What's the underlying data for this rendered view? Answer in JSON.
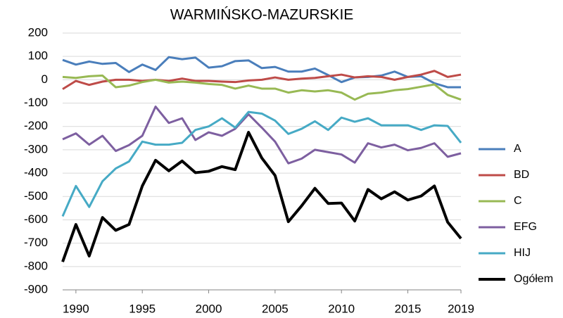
{
  "chart_data": {
    "type": "line",
    "title": "WARMIŃSKO-MAZURSKIE",
    "x": [
      1989,
      1990,
      1991,
      1992,
      1993,
      1994,
      1995,
      1996,
      1997,
      1998,
      1999,
      2000,
      2001,
      2002,
      2003,
      2004,
      2005,
      2006,
      2007,
      2008,
      2009,
      2010,
      2011,
      2012,
      2013,
      2014,
      2015,
      2016,
      2017,
      2018,
      2019
    ],
    "xlim": [
      1989,
      2019
    ],
    "xticks": [
      1990,
      1995,
      2000,
      2005,
      2010,
      2015,
      2019
    ],
    "ylim": [
      -900,
      200
    ],
    "yticks": [
      -900,
      -800,
      -700,
      -600,
      -500,
      -400,
      -300,
      -200,
      -100,
      0,
      100,
      200
    ],
    "grid": true,
    "legend": "right",
    "series": [
      {
        "name": "A",
        "color": "#4a7ebb",
        "line_width": 3,
        "values": [
          85,
          65,
          78,
          68,
          72,
          33,
          65,
          42,
          97,
          88,
          95,
          52,
          58,
          80,
          83,
          50,
          55,
          35,
          35,
          48,
          20,
          -10,
          10,
          12,
          18,
          35,
          12,
          15,
          -15,
          -32,
          -32
        ]
      },
      {
        "name": "BD",
        "color": "#be4b48",
        "line_width": 3,
        "values": [
          -40,
          -5,
          -22,
          -8,
          0,
          0,
          -5,
          0,
          -5,
          5,
          -5,
          -5,
          -8,
          -10,
          -3,
          0,
          10,
          0,
          5,
          8,
          15,
          22,
          10,
          15,
          12,
          0,
          12,
          22,
          38,
          12,
          22
        ]
      },
      {
        "name": "C",
        "color": "#98b954",
        "line_width": 3,
        "values": [
          12,
          8,
          15,
          18,
          -32,
          -25,
          -10,
          0,
          -12,
          -8,
          -12,
          -18,
          -22,
          -38,
          -25,
          -38,
          -38,
          -55,
          -45,
          -50,
          -45,
          -55,
          -85,
          -60,
          -55,
          -45,
          -40,
          -30,
          -20,
          -65,
          -85
        ]
      },
      {
        "name": "EFG",
        "color": "#7d5fa0",
        "line_width": 3,
        "values": [
          -255,
          -230,
          -278,
          -240,
          -305,
          -280,
          -240,
          -115,
          -185,
          -165,
          -258,
          -225,
          -240,
          -210,
          -148,
          -205,
          -265,
          -358,
          -338,
          -300,
          -310,
          -320,
          -355,
          -272,
          -290,
          -278,
          -302,
          -292,
          -272,
          -330,
          -315
        ]
      },
      {
        "name": "HIJ",
        "color": "#46aac5",
        "line_width": 3,
        "values": [
          -585,
          -455,
          -545,
          -435,
          -380,
          -350,
          -265,
          -278,
          -278,
          -270,
          -215,
          -200,
          -165,
          -205,
          -138,
          -145,
          -175,
          -232,
          -210,
          -178,
          -215,
          -162,
          -180,
          -165,
          -195,
          -195,
          -195,
          -215,
          -195,
          -198,
          -270
        ]
      },
      {
        "name": "Ogółem",
        "color": "#000000",
        "line_width": 4,
        "values": [
          -780,
          -620,
          -755,
          -590,
          -645,
          -620,
          -455,
          -345,
          -390,
          -348,
          -398,
          -392,
          -372,
          -385,
          -225,
          -335,
          -410,
          -608,
          -540,
          -465,
          -530,
          -528,
          -605,
          -470,
          -510,
          -480,
          -515,
          -498,
          -455,
          -610,
          -680
        ]
      }
    ]
  }
}
